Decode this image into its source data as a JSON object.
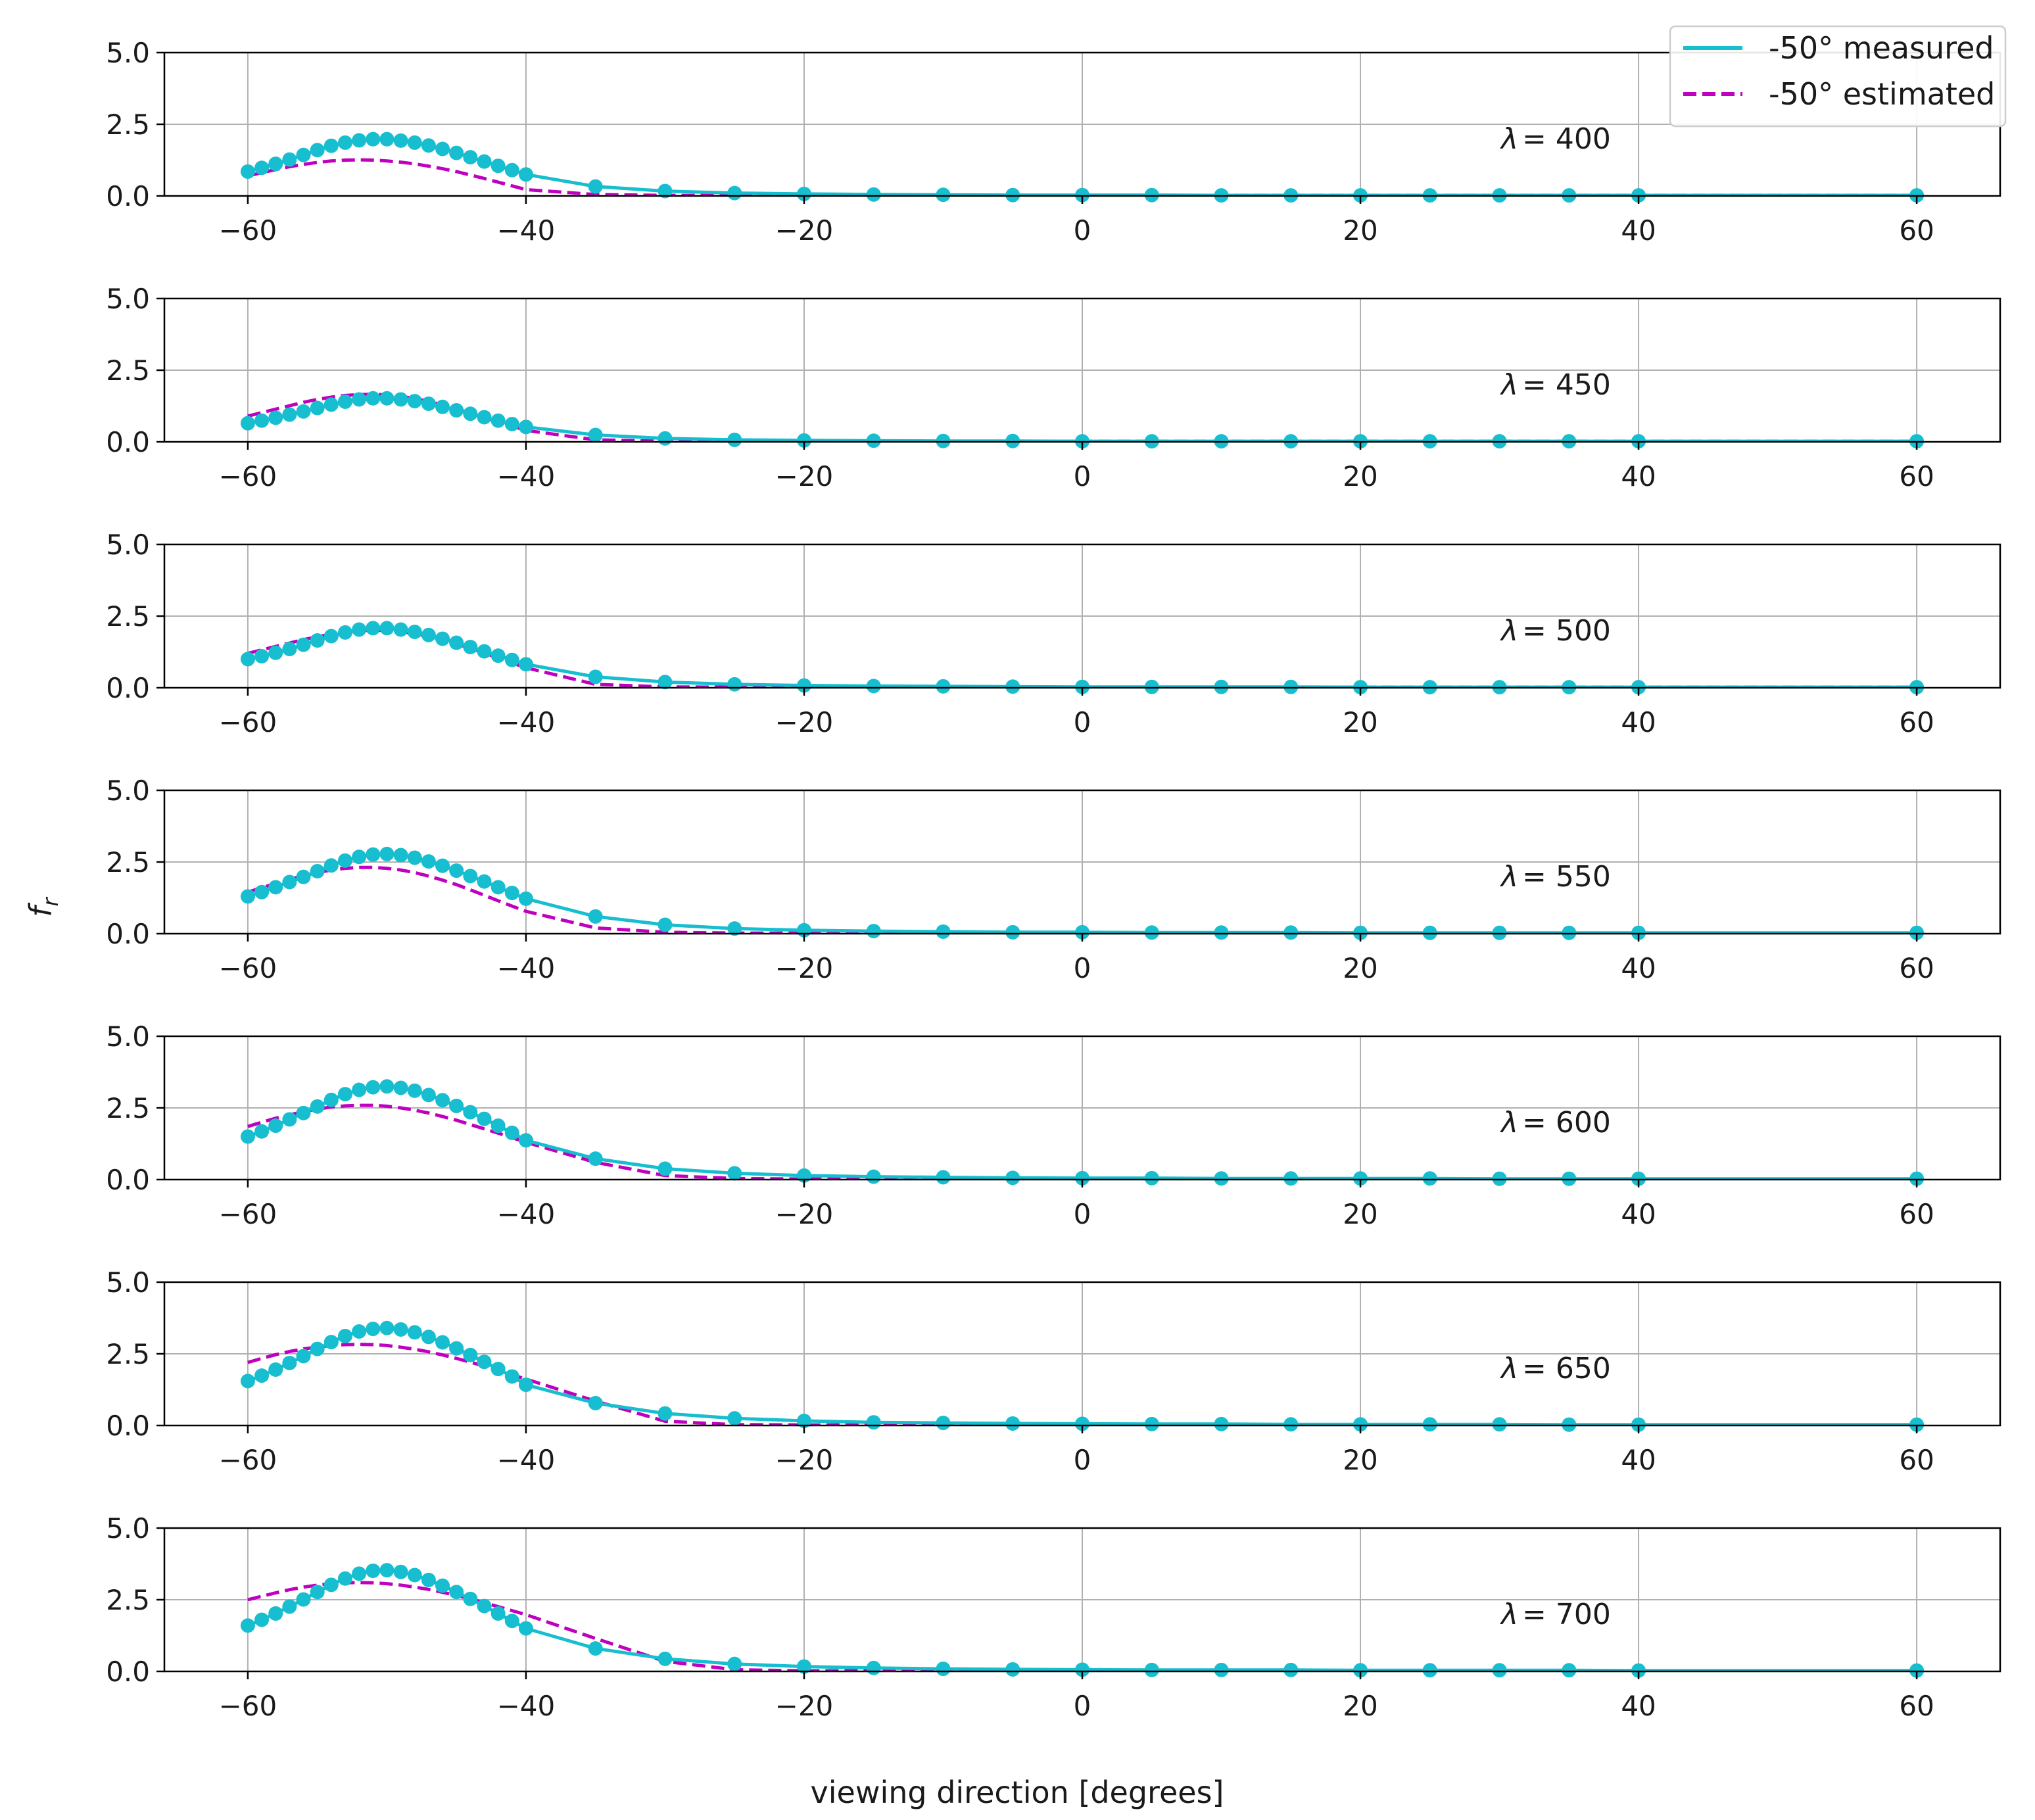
{
  "chart_data": {
    "type": "line",
    "xlabel": "viewing direction [degrees]",
    "ylabel": "f_r",
    "ylabel_main": "f",
    "ylabel_sub": "r",
    "xlim": [
      -66,
      66
    ],
    "ylim": [
      0,
      5
    ],
    "xticks": [
      -60,
      -40,
      -20,
      0,
      20,
      40,
      60
    ],
    "xtick_labels": [
      "−60",
      "−40",
      "−20",
      "0",
      "20",
      "40",
      "60"
    ],
    "yticks": [
      0,
      2.5,
      5
    ],
    "ytick_labels": [
      "0.0",
      "2.5",
      "5.0"
    ],
    "grid": true,
    "legend": {
      "placement": "top-right",
      "entries": [
        {
          "label": "-50° measured",
          "style": "solid",
          "color": "#17BECF"
        },
        {
          "label": "-50° estimated",
          "style": "dashed",
          "color": "#BF00BF"
        }
      ]
    },
    "x": [
      -60,
      -59,
      -58,
      -57,
      -56,
      -55,
      -54,
      -53,
      -52,
      -51,
      -50,
      -49,
      -48,
      -47,
      -46,
      -45,
      -44,
      -43,
      -42,
      -41,
      -40,
      -35,
      -30,
      -25,
      -20,
      -15,
      -10,
      -5,
      0,
      5,
      10,
      15,
      20,
      25,
      30,
      35,
      40,
      60
    ],
    "panels": [
      {
        "label_symbol": "λ",
        "label_text": "= 400",
        "measured": [
          0.85,
          0.98,
          1.12,
          1.27,
          1.43,
          1.6,
          1.75,
          1.86,
          1.94,
          1.98,
          1.98,
          1.93,
          1.86,
          1.76,
          1.64,
          1.5,
          1.35,
          1.2,
          1.05,
          0.9,
          0.75,
          0.33,
          0.17,
          0.1,
          0.07,
          0.05,
          0.04,
          0.03,
          0.03,
          0.03,
          0.02,
          0.02,
          0.02,
          0.02,
          0.02,
          0.02,
          0.02,
          0.02
        ],
        "estimated": [
          0.7,
          0.81,
          0.92,
          1.02,
          1.1,
          1.17,
          1.22,
          1.25,
          1.26,
          1.25,
          1.22,
          1.18,
          1.12,
          1.04,
          0.95,
          0.85,
          0.73,
          0.61,
          0.48,
          0.35,
          0.22,
          0.05,
          0.02,
          0.02,
          0.02,
          0.02,
          0.02,
          0.02,
          0.02,
          0.02,
          0.02,
          0.02,
          0.02,
          0.02,
          0.02,
          0.02,
          0.02,
          0.02
        ]
      },
      {
        "label_symbol": "λ",
        "label_text": "= 450",
        "measured": [
          0.65,
          0.74,
          0.84,
          0.95,
          1.06,
          1.18,
          1.3,
          1.4,
          1.48,
          1.52,
          1.52,
          1.48,
          1.42,
          1.33,
          1.22,
          1.1,
          0.98,
          0.86,
          0.74,
          0.62,
          0.52,
          0.24,
          0.12,
          0.07,
          0.05,
          0.04,
          0.03,
          0.03,
          0.02,
          0.02,
          0.02,
          0.02,
          0.02,
          0.02,
          0.02,
          0.02,
          0.02,
          0.02
        ],
        "estimated": [
          0.9,
          1.02,
          1.14,
          1.26,
          1.38,
          1.48,
          1.56,
          1.62,
          1.65,
          1.66,
          1.64,
          1.59,
          1.51,
          1.41,
          1.29,
          1.15,
          1.0,
          0.85,
          0.7,
          0.55,
          0.4,
          0.07,
          0.02,
          0.02,
          0.02,
          0.02,
          0.02,
          0.02,
          0.02,
          0.02,
          0.02,
          0.02,
          0.02,
          0.02,
          0.02,
          0.02,
          0.02,
          0.02
        ]
      },
      {
        "label_symbol": "λ",
        "label_text": "= 500",
        "measured": [
          1.0,
          1.1,
          1.22,
          1.35,
          1.5,
          1.65,
          1.8,
          1.93,
          2.03,
          2.08,
          2.08,
          2.03,
          1.95,
          1.84,
          1.71,
          1.57,
          1.42,
          1.27,
          1.12,
          0.97,
          0.82,
          0.38,
          0.2,
          0.12,
          0.08,
          0.06,
          0.05,
          0.04,
          0.03,
          0.03,
          0.03,
          0.03,
          0.02,
          0.02,
          0.02,
          0.02,
          0.02,
          0.02
        ],
        "estimated": [
          1.2,
          1.32,
          1.44,
          1.56,
          1.68,
          1.78,
          1.87,
          1.94,
          1.99,
          2.01,
          2.0,
          1.96,
          1.89,
          1.79,
          1.67,
          1.53,
          1.38,
          1.21,
          1.04,
          0.87,
          0.7,
          0.12,
          0.03,
          0.02,
          0.02,
          0.02,
          0.02,
          0.02,
          0.02,
          0.02,
          0.02,
          0.02,
          0.02,
          0.02,
          0.02,
          0.02,
          0.02,
          0.02
        ]
      },
      {
        "label_symbol": "λ",
        "label_text": "= 550",
        "measured": [
          1.3,
          1.45,
          1.62,
          1.8,
          1.98,
          2.18,
          2.38,
          2.55,
          2.68,
          2.76,
          2.78,
          2.74,
          2.65,
          2.52,
          2.37,
          2.2,
          2.01,
          1.82,
          1.62,
          1.42,
          1.22,
          0.6,
          0.31,
          0.18,
          0.12,
          0.09,
          0.07,
          0.05,
          0.05,
          0.04,
          0.04,
          0.04,
          0.03,
          0.03,
          0.03,
          0.03,
          0.03,
          0.03
        ],
        "estimated": [
          1.45,
          1.6,
          1.75,
          1.89,
          2.02,
          2.13,
          2.22,
          2.28,
          2.31,
          2.31,
          2.28,
          2.22,
          2.13,
          2.01,
          1.87,
          1.71,
          1.53,
          1.34,
          1.15,
          0.96,
          0.78,
          0.2,
          0.05,
          0.02,
          0.02,
          0.02,
          0.02,
          0.02,
          0.02,
          0.02,
          0.02,
          0.02,
          0.02,
          0.02,
          0.02,
          0.02,
          0.02,
          0.02
        ]
      },
      {
        "label_symbol": "λ",
        "label_text": "= 600",
        "measured": [
          1.5,
          1.68,
          1.88,
          2.1,
          2.32,
          2.55,
          2.78,
          2.98,
          3.13,
          3.22,
          3.25,
          3.2,
          3.1,
          2.95,
          2.77,
          2.57,
          2.35,
          2.12,
          1.88,
          1.63,
          1.37,
          0.73,
          0.38,
          0.22,
          0.14,
          0.1,
          0.08,
          0.06,
          0.05,
          0.05,
          0.04,
          0.04,
          0.04,
          0.04,
          0.03,
          0.03,
          0.03,
          0.03
        ],
        "estimated": [
          1.85,
          2.0,
          2.14,
          2.26,
          2.37,
          2.46,
          2.53,
          2.57,
          2.59,
          2.59,
          2.56,
          2.5,
          2.42,
          2.32,
          2.2,
          2.07,
          1.92,
          1.77,
          1.62,
          1.46,
          1.3,
          0.6,
          0.14,
          0.04,
          0.02,
          0.02,
          0.02,
          0.02,
          0.02,
          0.02,
          0.02,
          0.02,
          0.02,
          0.02,
          0.02,
          0.02,
          0.02,
          0.02
        ]
      },
      {
        "label_symbol": "λ",
        "label_text": "= 650",
        "measured": [
          1.55,
          1.74,
          1.95,
          2.18,
          2.42,
          2.67,
          2.91,
          3.12,
          3.28,
          3.37,
          3.4,
          3.35,
          3.25,
          3.09,
          2.9,
          2.69,
          2.46,
          2.22,
          1.97,
          1.71,
          1.42,
          0.78,
          0.42,
          0.25,
          0.16,
          0.11,
          0.09,
          0.07,
          0.06,
          0.05,
          0.05,
          0.04,
          0.04,
          0.04,
          0.04,
          0.03,
          0.03,
          0.03
        ],
        "estimated": [
          2.2,
          2.34,
          2.47,
          2.58,
          2.67,
          2.74,
          2.79,
          2.82,
          2.83,
          2.82,
          2.79,
          2.73,
          2.66,
          2.57,
          2.46,
          2.34,
          2.21,
          2.07,
          1.92,
          1.77,
          1.62,
          0.85,
          0.15,
          0.03,
          0.02,
          0.02,
          0.02,
          0.02,
          0.02,
          0.02,
          0.02,
          0.02,
          0.02,
          0.02,
          0.02,
          0.02,
          0.02,
          0.02
        ]
      },
      {
        "label_symbol": "λ",
        "label_text": "= 700",
        "measured": [
          1.6,
          1.8,
          2.02,
          2.26,
          2.51,
          2.77,
          3.02,
          3.24,
          3.41,
          3.51,
          3.53,
          3.47,
          3.36,
          3.19,
          2.99,
          2.77,
          2.53,
          2.28,
          2.02,
          1.76,
          1.5,
          0.8,
          0.44,
          0.26,
          0.17,
          0.12,
          0.09,
          0.07,
          0.06,
          0.05,
          0.05,
          0.05,
          0.04,
          0.04,
          0.04,
          0.04,
          0.03,
          0.03
        ],
        "estimated": [
          2.5,
          2.62,
          2.74,
          2.85,
          2.94,
          3.01,
          3.06,
          3.09,
          3.1,
          3.09,
          3.06,
          3.01,
          2.94,
          2.86,
          2.76,
          2.65,
          2.53,
          2.4,
          2.26,
          2.12,
          1.98,
          1.15,
          0.35,
          0.06,
          0.02,
          0.02,
          0.02,
          0.02,
          0.02,
          0.02,
          0.02,
          0.02,
          0.02,
          0.02,
          0.02,
          0.02,
          0.02,
          0.02
        ]
      }
    ]
  }
}
